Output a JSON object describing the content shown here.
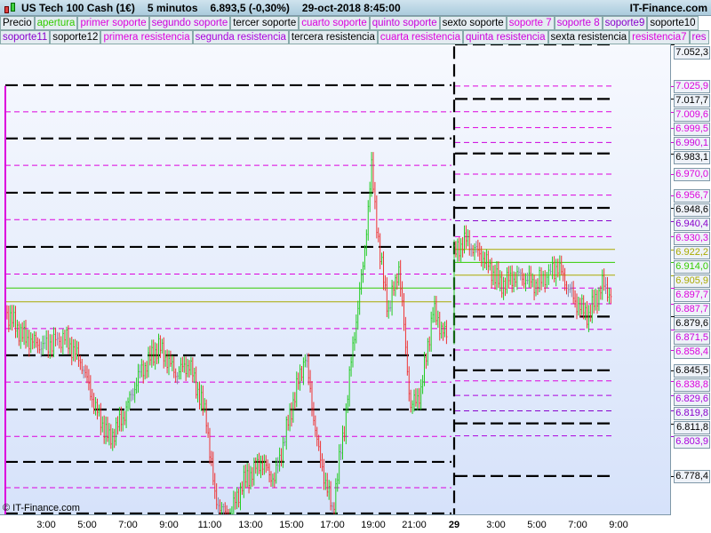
{
  "header": {
    "instrument": "US Tech 100 Cash (1€)",
    "timeframe": "5 minutos",
    "price": "6.893,5 (-0,30%)",
    "datetime": "29-oct-2018 8:45:00",
    "site": "IT-Finance.com"
  },
  "legend_row1": [
    {
      "label": "Precio",
      "color": "#000000"
    },
    {
      "label": "apertura",
      "color": "#33cc00"
    },
    {
      "label": "primer soporte",
      "color": "#dd00dd"
    },
    {
      "label": "segundo soporte",
      "color": "#cc00dd"
    },
    {
      "label": "tercer soporte",
      "color": "#000000"
    },
    {
      "label": "cuarto soporte",
      "color": "#dd00dd"
    },
    {
      "label": "quinto soporte",
      "color": "#cc00dd"
    },
    {
      "label": "sexto soporte",
      "color": "#000000"
    },
    {
      "label": "soporte 7",
      "color": "#dd00dd"
    },
    {
      "label": "soporte 8",
      "color": "#cc00dd"
    },
    {
      "label": "soporte9",
      "color": "#8800cc"
    },
    {
      "label": "soporte10",
      "color": "#000000"
    }
  ],
  "legend_row2": [
    {
      "label": "soporte11",
      "color": "#8800cc"
    },
    {
      "label": "soporte12",
      "color": "#000000"
    },
    {
      "label": "primera resistencia",
      "color": "#dd00dd"
    },
    {
      "label": "segunda resistencia",
      "color": "#aa00dd"
    },
    {
      "label": "tercera resistencia",
      "color": "#000000"
    },
    {
      "label": "cuarta resistencia",
      "color": "#dd00dd"
    },
    {
      "label": "quinta resistencia",
      "color": "#cc00dd"
    },
    {
      "label": "sexta resistencia",
      "color": "#000000"
    },
    {
      "label": "resistencia7",
      "color": "#dd00dd"
    },
    {
      "label": "res",
      "color": "#cc00dd"
    }
  ],
  "copyright": "© IT-Finance.com",
  "chart_data": {
    "type": "candlestick",
    "ylim": [
      6745,
      7065
    ],
    "x_ticks": [
      "3:00",
      "5:00",
      "7:00",
      "9:00",
      "11:00",
      "13:00",
      "15:00",
      "17:00",
      "19:00",
      "21:00",
      "29",
      "3:00",
      "5:00",
      "7:00",
      "9:00"
    ],
    "price_path": [
      [
        "28 01:05",
        6883.2
      ],
      [
        "28 02:00",
        6866.3
      ],
      [
        "28 02:55",
        6860.6
      ],
      [
        "28 04:00",
        6866.3
      ],
      [
        "28 04:50",
        6849.4
      ],
      [
        "28 05:30",
        6821.2
      ],
      [
        "28 06:10",
        6801.5
      ],
      [
        "28 06:50",
        6815.5
      ],
      [
        "28 07:40",
        6843.7
      ],
      [
        "28 08:35",
        6860.6
      ],
      [
        "28 09:25",
        6843.7
      ],
      [
        "28 10:05",
        6849.4
      ],
      [
        "28 10:55",
        6815.5
      ],
      [
        "28 11:20",
        6764.8
      ],
      [
        "28 12:00",
        6750.7
      ],
      [
        "28 12:40",
        6773.3
      ],
      [
        "28 13:35",
        6787.4
      ],
      [
        "28 14:15",
        6776.1
      ],
      [
        "28 15:05",
        6821.2
      ],
      [
        "28 15:45",
        6855.0
      ],
      [
        "28 16:25",
        6793.0
      ],
      [
        "28 17:05",
        6756.4
      ],
      [
        "28 17:40",
        6809.9
      ],
      [
        "28 18:05",
        6860.6
      ],
      [
        "28 18:35",
        6911.4
      ],
      [
        "28 19:00",
        6973.4
      ],
      [
        "28 19:25",
        6917.0
      ],
      [
        "28 19:50",
        6883.2
      ],
      [
        "28 20:20",
        6911.4
      ],
      [
        "28 20:55",
        6821.2
      ],
      [
        "28 21:25",
        6832.5
      ],
      [
        "28 22:00",
        6883.2
      ],
      [
        "28 22:40",
        6866.3
      ],
      [
        "29 01:00",
        6917.0
      ],
      [
        "29 01:35",
        6928.3
      ],
      [
        "29 02:30",
        6917.0
      ],
      [
        "29 03:20",
        6900.1
      ],
      [
        "29 04:15",
        6905.7
      ],
      [
        "29 05:05",
        6900.1
      ],
      [
        "29 06:10",
        6911.4
      ],
      [
        "29 07:00",
        6889.0
      ],
      [
        "29 07:40",
        6880.4
      ],
      [
        "29 08:20",
        6900.1
      ],
      [
        "29 08:45",
        6893.5
      ]
    ],
    "levels_today": [
      {
        "value": 7052.3,
        "label": "7.052,3",
        "color": "#000000",
        "style": "major"
      },
      {
        "value": 7025.9,
        "label": "7.025,9",
        "color": "#dd00dd",
        "style": "minor"
      },
      {
        "value": 7017.7,
        "label": "7.017,7",
        "color": "#000000",
        "style": "major"
      },
      {
        "value": 7009.6,
        "label": "7.009,6",
        "color": "#dd00dd",
        "style": "minor"
      },
      {
        "value": 6999.5,
        "label": "6.999,5",
        "color": "#dd00dd",
        "style": "minor"
      },
      {
        "value": 6990.1,
        "label": "6.990,1",
        "color": "#cc00dd",
        "style": "minor"
      },
      {
        "value": 6983.1,
        "label": "6.983,1",
        "color": "#000000",
        "style": "major"
      },
      {
        "value": 6970.0,
        "label": "6.970,0",
        "color": "#dd00dd",
        "style": "minor"
      },
      {
        "value": 6956.7,
        "label": "6.956,7",
        "color": "#dd00dd",
        "style": "minor"
      },
      {
        "value": 6948.6,
        "label": "6.948,6",
        "color": "#000000",
        "style": "major"
      },
      {
        "value": 6940.4,
        "label": "6.940,4",
        "color": "#8800cc",
        "style": "minor"
      },
      {
        "value": 6930.3,
        "label": "6.930,3",
        "color": "#dd00dd",
        "style": "minor"
      },
      {
        "value": 6922.2,
        "label": "6.922,2",
        "color": "#aaaa00",
        "style": "solid"
      },
      {
        "value": 6914.0,
        "label": "6.914,0",
        "color": "#33cc00",
        "style": "solid"
      },
      {
        "value": 6905.9,
        "label": "6.905,9",
        "color": "#aaaa00",
        "style": "solid"
      },
      {
        "value": 6897.7,
        "label": "6.897,7",
        "color": "#dd00dd",
        "style": "minor"
      },
      {
        "value": 6887.7,
        "label": "6.887,7",
        "color": "#dd00dd",
        "style": "minor"
      },
      {
        "value": 6879.6,
        "label": "6.879,6",
        "color": "#000000",
        "style": "major"
      },
      {
        "value": 6871.5,
        "label": "6.871,5",
        "color": "#cc00dd",
        "style": "minor"
      },
      {
        "value": 6858.4,
        "label": "6.858,4",
        "color": "#dd00dd",
        "style": "minor"
      },
      {
        "value": 6845.5,
        "label": "6.845,5",
        "color": "#000000",
        "style": "major"
      },
      {
        "value": 6838.8,
        "label": "6.838,8",
        "color": "#dd00dd",
        "style": "minor"
      },
      {
        "value": 6829.6,
        "label": "6.829,6",
        "color": "#aa00dd",
        "style": "minor"
      },
      {
        "value": 6819.8,
        "label": "6.819,8",
        "color": "#8800cc",
        "style": "minor"
      },
      {
        "value": 6811.8,
        "label": "6.811,8",
        "color": "#000000",
        "style": "major"
      },
      {
        "value": 6803.9,
        "label": "6.803,9",
        "color": "#aa00dd",
        "style": "minor"
      },
      {
        "value": 6778.4,
        "label": "6.778,4",
        "color": "#000000",
        "style": "major"
      }
    ],
    "levels_previous": [
      {
        "value": 7026.4,
        "color": "#000000",
        "style": "major"
      },
      {
        "value": 6992.6,
        "color": "#000000",
        "style": "major"
      },
      {
        "value": 6958.2,
        "color": "#000000",
        "style": "major"
      },
      {
        "value": 6923.8,
        "color": "#000000",
        "style": "major"
      },
      {
        "value": 6855.0,
        "color": "#000000",
        "style": "major"
      },
      {
        "value": 6820.6,
        "color": "#000000",
        "style": "major"
      },
      {
        "value": 6787.4,
        "color": "#000000",
        "style": "major"
      },
      {
        "value": 6754.7,
        "color": "#000000",
        "style": "major"
      },
      {
        "value": 7009.5,
        "color": "#dd00dd",
        "style": "minor"
      },
      {
        "value": 6975.6,
        "color": "#dd00dd",
        "style": "minor"
      },
      {
        "value": 6941.1,
        "color": "#dd00dd",
        "style": "minor"
      },
      {
        "value": 6906.6,
        "color": "#dd00dd",
        "style": "minor"
      },
      {
        "value": 6897.7,
        "color": "#33cc00",
        "style": "solid"
      },
      {
        "value": 6889.0,
        "color": "#aaaa00",
        "style": "solid"
      },
      {
        "value": 6872.0,
        "color": "#dd00dd",
        "style": "minor"
      },
      {
        "value": 6838.0,
        "color": "#dd00dd",
        "style": "minor"
      },
      {
        "value": 6803.6,
        "color": "#dd00dd",
        "style": "minor"
      },
      {
        "value": 6771.0,
        "color": "#dd00dd",
        "style": "minor"
      }
    ]
  }
}
